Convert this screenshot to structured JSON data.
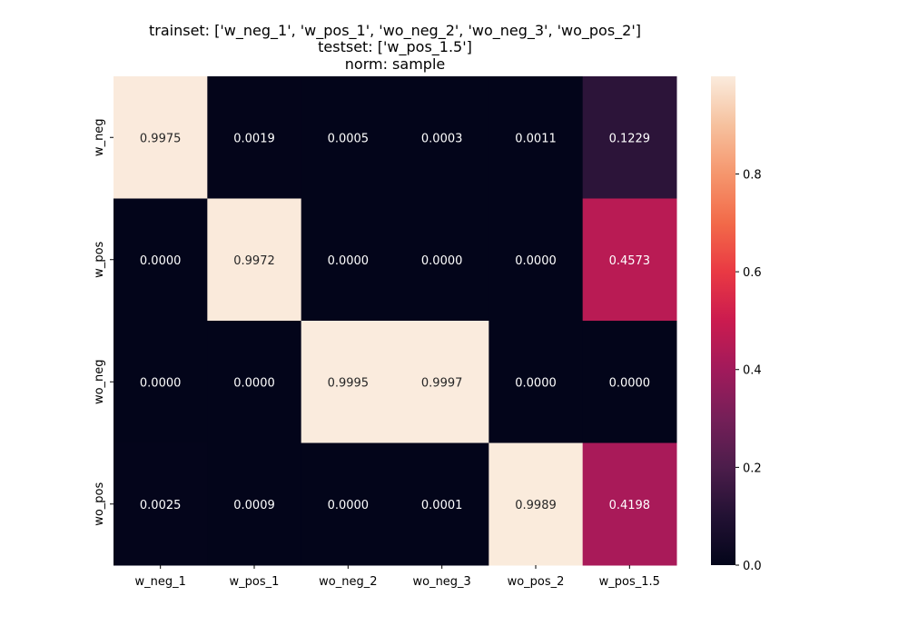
{
  "chart_data": {
    "type": "heatmap",
    "title_lines": [
      "trainset: ['w_neg_1', 'w_pos_1', 'wo_neg_2', 'wo_neg_3', 'wo_pos_2']",
      "testset: ['w_pos_1.5']",
      "norm: sample"
    ],
    "x_categories": [
      "w_neg_1",
      "w_pos_1",
      "wo_neg_2",
      "wo_neg_3",
      "wo_pos_2",
      "w_pos_1.5"
    ],
    "y_categories": [
      "w_neg",
      "w_pos",
      "wo_neg",
      "wo_pos"
    ],
    "values": [
      [
        0.9975,
        0.0019,
        0.0005,
        0.0003,
        0.0011,
        0.1229
      ],
      [
        0.0,
        0.9972,
        0.0,
        0.0,
        0.0,
        0.4573
      ],
      [
        0.0,
        0.0,
        0.9995,
        0.9997,
        0.0,
        0.0
      ],
      [
        0.0025,
        0.0009,
        0.0,
        0.0001,
        0.9989,
        0.4198
      ]
    ],
    "value_labels": [
      [
        "0.9975",
        "0.0019",
        "0.0005",
        "0.0003",
        "0.0011",
        "0.1229"
      ],
      [
        "0.0000",
        "0.9972",
        "0.0000",
        "0.0000",
        "0.0000",
        "0.4573"
      ],
      [
        "0.0000",
        "0.0000",
        "0.9995",
        "0.9997",
        "0.0000",
        "0.0000"
      ],
      [
        "0.0025",
        "0.0009",
        "0.0000",
        "0.0001",
        "0.9989",
        "0.4198"
      ]
    ],
    "colormap": "rocket",
    "colorbar": {
      "range": [
        0.0,
        0.9997
      ],
      "ticks": [
        0.0,
        0.2,
        0.4,
        0.6,
        0.8
      ],
      "tick_labels": [
        "0.0",
        "0.2",
        "0.4",
        "0.6",
        "0.8"
      ]
    },
    "xlabel": "",
    "ylabel": ""
  }
}
